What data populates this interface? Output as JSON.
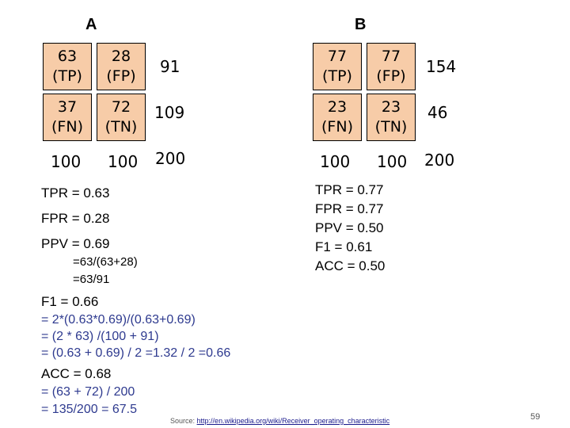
{
  "panelA": {
    "header": "A",
    "cells": [
      {
        "value": "63",
        "label": "(TP)"
      },
      {
        "value": "28",
        "label": "(FP)"
      },
      {
        "value": "37",
        "label": "(FN)"
      },
      {
        "value": "72",
        "label": "(TN)"
      }
    ],
    "row_totals": [
      "91",
      "109"
    ],
    "col_totals": [
      "100",
      "100"
    ],
    "grand_total": "200",
    "tpr": "TPR = 0.63",
    "fpr": "FPR = 0.28",
    "ppv": "PPV = 0.69",
    "ppv_calc": [
      "=63/(63+28)",
      "=63/91"
    ],
    "f1": "F1 = 0.66",
    "f1_calc": [
      "= 2*(0.63*0.69)/(0.63+0.69)",
      "= (2 * 63) /(100 + 91)",
      "= (0.63 + 0.69) / 2 =1.32 / 2 =0.66"
    ],
    "acc": "ACC = 0.68",
    "acc_calc": [
      "= (63 + 72) / 200",
      "= 135/200 = 67.5"
    ]
  },
  "panelB": {
    "header": "B",
    "cells": [
      {
        "value": "77",
        "label": "(TP)"
      },
      {
        "value": "77",
        "label": "(FP)"
      },
      {
        "value": "23",
        "label": "(FN)"
      },
      {
        "value": "23",
        "label": "(TN)"
      }
    ],
    "row_totals": [
      "154",
      "46"
    ],
    "col_totals": [
      "100",
      "100"
    ],
    "grand_total": "200",
    "stats": [
      "TPR = 0.77",
      "FPR = 0.77",
      "PPV = 0.50",
      "F1 = 0.61",
      "ACC = 0.50"
    ]
  },
  "footer": {
    "source_label": "Source:",
    "source_link": "http://en.wikipedia.org/wiki/Receiver_operating_characteristic",
    "page_number": "59"
  },
  "colors": {
    "cell_fill": "#f7cca8",
    "calc_text": "#2e3a8f"
  }
}
